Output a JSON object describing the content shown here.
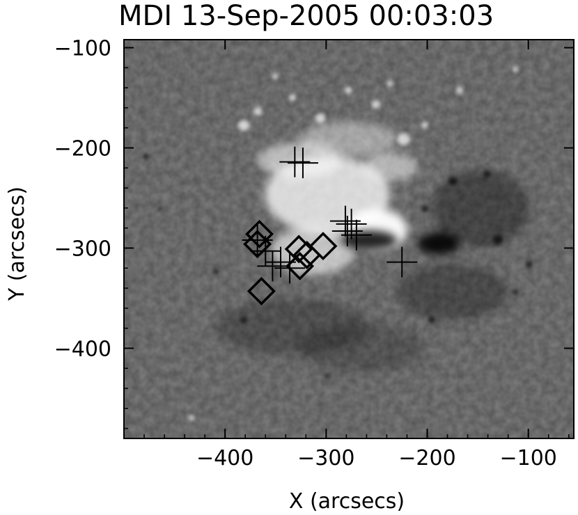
{
  "title": "MDI 13-Sep-2005 00:03:03",
  "image": {
    "description_icon": "solar-magnetogram-image"
  },
  "chart_data": {
    "type": "scatter",
    "title": "MDI 13-Sep-2005 00:03:03",
    "xlabel": "X (arcsecs)",
    "ylabel": "Y (arcsecs)",
    "xlim": [
      -500,
      -55
    ],
    "ylim": [
      -490,
      -92
    ],
    "x_ticks": [
      -400,
      -300,
      -200,
      -100
    ],
    "x_tick_labels": [
      "−400",
      "−300",
      "−200",
      "−100"
    ],
    "y_ticks": [
      -100,
      -200,
      -300,
      -400
    ],
    "y_tick_labels": [
      "−100",
      "−200",
      "−300",
      "−400"
    ],
    "grid": false,
    "series": [
      {
        "marker": "plus",
        "points": [
          {
            "x": -331,
            "y": -214
          },
          {
            "x": -323,
            "y": -215
          },
          {
            "x": -281,
            "y": -273
          },
          {
            "x": -275,
            "y": -276
          },
          {
            "x": -279,
            "y": -283
          },
          {
            "x": -270,
            "y": -287
          },
          {
            "x": -225,
            "y": -314
          },
          {
            "x": -368,
            "y": -292
          },
          {
            "x": -360,
            "y": -303
          },
          {
            "x": -353,
            "y": -318
          },
          {
            "x": -345,
            "y": -314
          },
          {
            "x": -336,
            "y": -320
          }
        ]
      },
      {
        "marker": "diamond",
        "points": [
          {
            "x": -366,
            "y": -286
          },
          {
            "x": -368,
            "y": -296
          },
          {
            "x": -327,
            "y": -301
          },
          {
            "x": -319,
            "y": -307
          },
          {
            "x": -326,
            "y": -318
          },
          {
            "x": -303,
            "y": -298
          },
          {
            "x": -364,
            "y": -343
          }
        ]
      }
    ]
  }
}
